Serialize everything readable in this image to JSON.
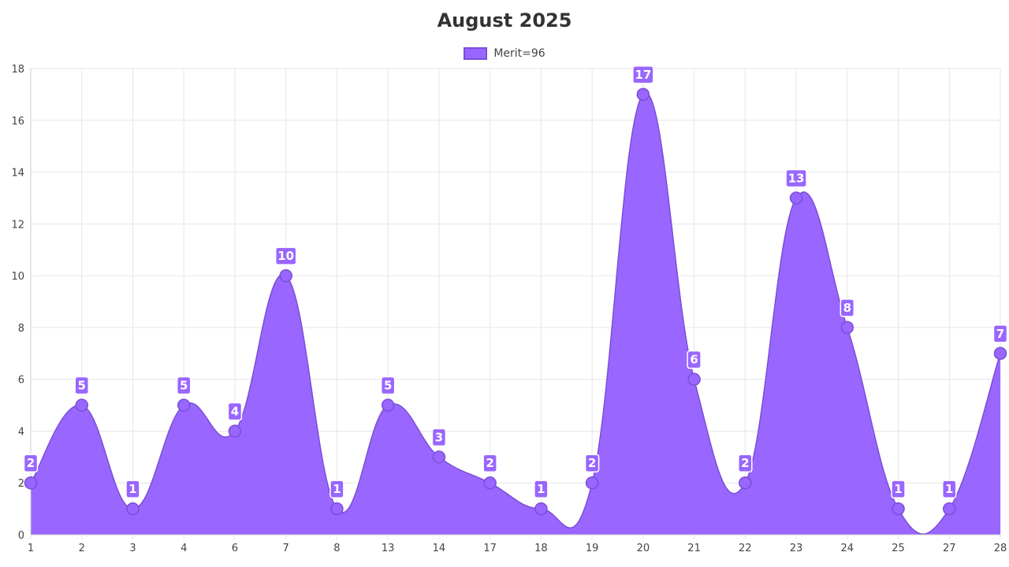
{
  "chart_data": {
    "type": "area",
    "title": "August 2025",
    "series": [
      {
        "name": "Merit=96",
        "values": [
          2,
          5,
          1,
          5,
          4,
          10,
          1,
          5,
          3,
          2,
          1,
          2,
          17,
          6,
          2,
          13,
          8,
          1,
          1,
          7
        ]
      }
    ],
    "categories": [
      "1",
      "2",
      "3",
      "4",
      "6",
      "7",
      "8",
      "13",
      "14",
      "17",
      "18",
      "19",
      "20",
      "21",
      "22",
      "23",
      "24",
      "25",
      "27",
      "28"
    ],
    "ylim": [
      0,
      18
    ],
    "yticks": [
      0,
      2,
      4,
      6,
      8,
      10,
      12,
      14,
      16,
      18
    ],
    "grid": true,
    "legend_position": "top",
    "colors": {
      "fill": "#9966ff",
      "stroke": "#7a4fd6",
      "point": "#9966ff",
      "label_bg": "#9966ff",
      "grid": "#e6e6e6"
    }
  }
}
